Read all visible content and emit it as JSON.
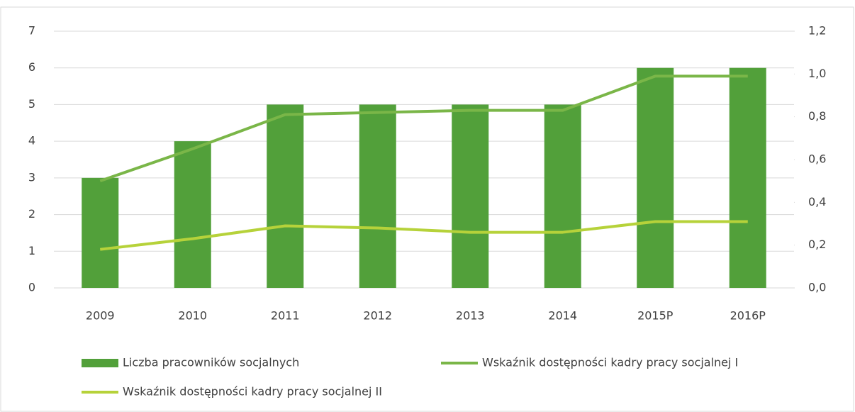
{
  "chart_data": {
    "type": "bar_line",
    "categories": [
      "2009",
      "2010",
      "2011",
      "2012",
      "2013",
      "2014",
      "2015P",
      "2016P"
    ],
    "series": [
      {
        "name": "Liczba pracowników socjalnych",
        "type": "bar",
        "color": "#52a03a",
        "values": [
          3,
          4,
          5,
          5,
          5,
          5,
          6,
          6
        ]
      },
      {
        "name": "Wskaźnik dostępności kadry pracy socjalnej I",
        "type": "line",
        "axis": "y2",
        "color": "#7ab648",
        "values": [
          0.5,
          0.65,
          0.81,
          0.82,
          0.83,
          0.83,
          0.99,
          0.99
        ]
      },
      {
        "name": "Wskaźnik dostępności kadry pracy socjalnej II",
        "type": "line",
        "axis": "y2",
        "color": "#b6d23a",
        "values": [
          0.18,
          0.23,
          0.29,
          0.28,
          0.26,
          0.26,
          0.31,
          0.31
        ]
      }
    ],
    "ylim": [
      0,
      7
    ],
    "yticks": [
      0,
      1,
      2,
      3,
      4,
      5,
      6,
      7
    ],
    "y2lim": [
      0,
      1.2
    ],
    "y2ticks": [
      {
        "value": 0,
        "label": "0,0"
      },
      {
        "value": 0.2,
        "label": "0,2"
      },
      {
        "value": 0.4,
        "label": "0,4"
      },
      {
        "value": 0.6,
        "label": "0,6"
      },
      {
        "value": 0.8,
        "label": "0,8"
      },
      {
        "value": 1.0,
        "label": "1,0"
      },
      {
        "value": 1.2,
        "label": "1,2"
      }
    ],
    "grid": true,
    "legend": "bottom"
  }
}
